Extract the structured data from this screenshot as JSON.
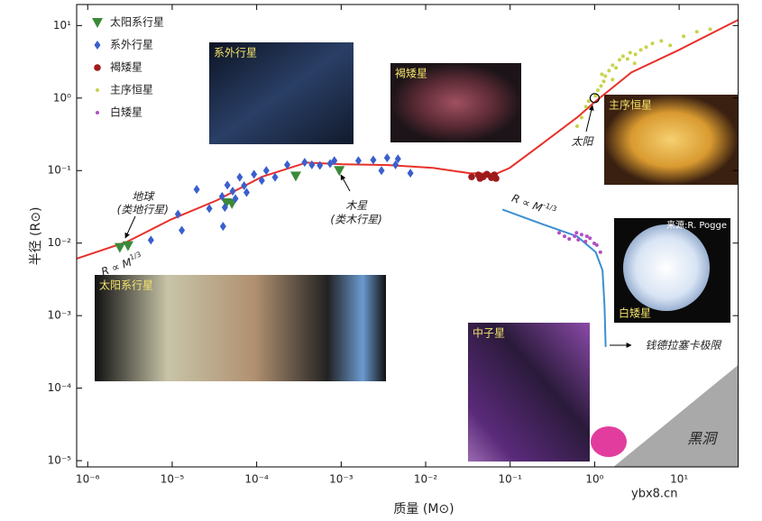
{
  "chart_data": {
    "type": "scatter",
    "x_label": "质量 (M⊙)",
    "y_label": "半径 (R⊙)",
    "log_x": true,
    "log_y": true,
    "grid": false,
    "legend": "upper left",
    "xlim": [
      7.4e-07,
      50
    ],
    "ylim": [
      8.2e-06,
      19.5
    ],
    "xticks": [
      {
        "value": 1e-06,
        "label": "10⁻⁶"
      },
      {
        "value": 1e-05,
        "label": "10⁻⁵"
      },
      {
        "value": 0.0001,
        "label": "10⁻⁴"
      },
      {
        "value": 0.001,
        "label": "10⁻³"
      },
      {
        "value": 0.01,
        "label": "10⁻²"
      },
      {
        "value": 0.1,
        "label": "10⁻¹"
      },
      {
        "value": 1,
        "label": "10⁰"
      },
      {
        "value": 10,
        "label": "10¹"
      }
    ],
    "yticks": [
      {
        "value": 1e-05,
        "label": "10⁻⁵"
      },
      {
        "value": 0.0001,
        "label": "10⁻⁴"
      },
      {
        "value": 0.001,
        "label": "10⁻³"
      },
      {
        "value": 0.01,
        "label": "10⁻²"
      },
      {
        "value": 0.1,
        "label": "10⁻¹"
      },
      {
        "value": 1,
        "label": "10⁰"
      },
      {
        "value": 10,
        "label": "10¹"
      }
    ],
    "series": [
      {
        "type": "area",
        "color": "#a9a9a9",
        "x": [
          1.67,
          49.5
        ],
        "values": [
          8.2e-06,
          0.000207
        ]
      },
      {
        "type": "line",
        "color": "#e8302a",
        "x": [
          7.4e-07,
          2.9e-06,
          9.8e-06,
          3.4e-05,
          0.000115,
          0.00039,
          0.00105,
          0.0036,
          0.0122,
          0.033,
          0.068,
          0.099,
          0.233,
          0.62,
          1.0,
          2.72,
          10,
          49.5
        ],
        "values": [
          0.0061,
          0.0104,
          0.0213,
          0.039,
          0.082,
          0.129,
          0.122,
          0.119,
          0.109,
          0.092,
          0.09,
          0.109,
          0.229,
          0.54,
          0.88,
          2.26,
          4.62,
          11.9
        ]
      },
      {
        "type": "line",
        "color": "#3d8fd0",
        "x": [
          0.081,
          0.233,
          0.62,
          1.03,
          1.24,
          1.31,
          1.35
        ],
        "values": [
          0.029,
          0.0185,
          0.0124,
          0.0075,
          0.0042,
          0.00133,
          0.00037
        ]
      },
      {
        "name": "太阳系行星",
        "marker": "triangle-down",
        "color": "#3a8a3a",
        "x": [
          2.4e-06,
          3e-06,
          4.4e-05,
          5.1e-05,
          0.00029,
          0.00095
        ],
        "values": [
          0.0087,
          0.0092,
          0.036,
          0.035,
          0.084,
          0.1
        ]
      },
      {
        "name": "系外行星",
        "marker": "diamond",
        "color": "#3a5fcd",
        "x": [
          5.6e-06,
          1.17e-05,
          1.3e-05,
          1.95e-05,
          2.75e-05,
          3.9e-05,
          4e-05,
          4.2e-05,
          4.5e-05,
          5.2e-05,
          5.6e-05,
          6.3e-05,
          7.1e-05,
          7.6e-05,
          9.3e-05,
          0.000115,
          0.00013,
          0.000165,
          0.00023,
          0.00037,
          0.00045,
          0.00056,
          0.00074,
          0.00083,
          0.0016,
          0.0024,
          0.003,
          0.0035,
          0.0044,
          0.0047,
          0.0066
        ],
        "values": [
          0.011,
          0.025,
          0.015,
          0.055,
          0.03,
          0.044,
          0.017,
          0.031,
          0.063,
          0.052,
          0.041,
          0.081,
          0.062,
          0.05,
          0.089,
          0.073,
          0.1,
          0.081,
          0.12,
          0.13,
          0.12,
          0.118,
          0.125,
          0.137,
          0.137,
          0.14,
          0.1,
          0.15,
          0.12,
          0.145,
          0.092
        ]
      },
      {
        "name": "褐矮星",
        "marker": "circle",
        "color": "#9e1b1b",
        "x": [
          0.035,
          0.042,
          0.044,
          0.048,
          0.053,
          0.06,
          0.065,
          0.068
        ],
        "values": [
          0.082,
          0.087,
          0.078,
          0.082,
          0.089,
          0.08,
          0.087,
          0.078
        ]
      },
      {
        "name": "主序恒星",
        "marker": "dot",
        "color": "#c9d24a",
        "x": [
          0.62,
          0.7,
          0.79,
          0.85,
          1.02,
          1.09,
          1.19,
          1.28,
          1.34,
          1.48,
          1.63,
          1.79,
          1.97,
          2.17,
          2.45,
          2.63,
          3.04,
          3.52,
          4.07,
          4.83,
          6.15,
          7.84,
          11.3,
          16.2,
          23.3,
          2.97,
          1.22,
          1.63
        ],
        "values": [
          0.41,
          0.54,
          0.76,
          0.91,
          1.07,
          1.28,
          1.47,
          1.7,
          2.01,
          2.39,
          2.84,
          2.61,
          3.37,
          3.78,
          3.47,
          4.24,
          4.0,
          4.62,
          5.04,
          5.65,
          6.15,
          5.33,
          7.1,
          8.19,
          8.92,
          3.01,
          2.13,
          1.8
        ]
      },
      {
        "name": "白矮星",
        "marker": "dot",
        "color": "#b24fc2",
        "x": [
          0.38,
          0.44,
          0.5,
          0.58,
          0.61,
          0.64,
          0.7,
          0.78,
          0.81,
          0.88,
          0.99,
          1.06,
          1.17
        ],
        "values": [
          0.0139,
          0.0124,
          0.0114,
          0.0124,
          0.0139,
          0.0111,
          0.0131,
          0.0105,
          0.0124,
          0.0117,
          0.0099,
          0.0094,
          0.0075
        ]
      },
      {
        "type": "marker",
        "marker": "open-circle",
        "color": "#000000",
        "x": [
          1
        ],
        "values": [
          1
        ]
      }
    ],
    "annotations": [
      {
        "text": "地球",
        "x": 4.48e-06,
        "y": 0.0437
      },
      {
        "text": "(类地行星)",
        "x": 4.48e-06,
        "y": 0.0292
      },
      {
        "text": "木星",
        "x": 0.00151,
        "y": 0.0328
      },
      {
        "text": "(类木行星)",
        "x": 0.00151,
        "y": 0.0213
      },
      {
        "text": "太阳",
        "x": 0.71,
        "y": 0.25
      },
      {
        "text": "R ∝ M",
        "sup": "1/3",
        "x": 2.54e-06,
        "y": 0.00497,
        "angle": -20
      },
      {
        "text": "R ∝ M",
        "sup": "-1/3",
        "x": 0.19,
        "y": 0.033,
        "angle": 20
      },
      {
        "text": "钱德拉塞卡极限",
        "x": 11.1,
        "y": 0.00039
      },
      {
        "text": "黑洞",
        "x": 18.5,
        "y": 2e-05
      }
    ],
    "insets": [
      {
        "label": "系外行星"
      },
      {
        "label": "褐矮星"
      },
      {
        "label": "主序恒星"
      },
      {
        "label": "白矮星",
        "credit": "来源:R. Pogge"
      },
      {
        "label": "太阳系行星"
      },
      {
        "label": "中子星"
      }
    ],
    "watermark": "ybx8.cn"
  }
}
